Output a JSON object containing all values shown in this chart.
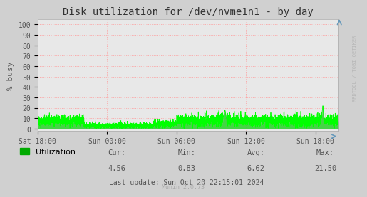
{
  "title": "Disk utilization for /dev/nvme1n1 - by day",
  "ylabel": "% busy",
  "yticks": [
    0,
    10,
    20,
    30,
    40,
    50,
    60,
    70,
    80,
    90,
    100
  ],
  "ylim": [
    0,
    105
  ],
  "xlim_hours": 26,
  "xtick_labels": [
    "Sat 18:00",
    "Sun 00:00",
    "Sun 06:00",
    "Sun 12:00",
    "Sun 18:00"
  ],
  "bg_color": "#d0d0d0",
  "plot_bg_color": "#e8e8e8",
  "line_color": "#00ff00",
  "fill_color": "#00cc00",
  "grid_color": "#ff9999",
  "title_color": "#333333",
  "label_color": "#555555",
  "legend_label": "Utilization",
  "legend_color": "#00aa00",
  "cur_val": "4.56",
  "min_val": "0.83",
  "avg_val": "6.62",
  "max_val": "21.50",
  "last_update": "Last update: Sun Oct 20 22:15:01 2024",
  "munin_version": "Munin 2.0.73",
  "rrdtool_text": "RRDTOOL / TOBI OETIKER",
  "arrow_color": "#6699bb"
}
